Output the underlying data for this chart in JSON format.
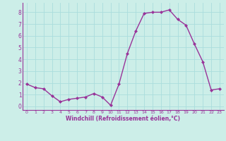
{
  "x": [
    0,
    1,
    2,
    3,
    4,
    5,
    6,
    7,
    8,
    9,
    10,
    11,
    12,
    13,
    14,
    15,
    16,
    17,
    18,
    19,
    20,
    21,
    22,
    23
  ],
  "y": [
    1.9,
    1.6,
    1.5,
    0.9,
    0.4,
    0.6,
    0.7,
    0.8,
    1.1,
    0.8,
    0.1,
    1.9,
    4.5,
    6.4,
    7.9,
    8.0,
    8.0,
    8.2,
    7.4,
    6.9,
    5.3,
    3.8,
    1.4,
    1.5
  ],
  "line_color": "#993399",
  "marker": "D",
  "marker_size": 2.0,
  "bg_color": "#cceee8",
  "grid_color": "#aadddd",
  "xlabel": "Windchill (Refroidissement éolien,°C)",
  "xlabel_color": "#993399",
  "tick_color": "#993399",
  "label_color": "#993399",
  "ylim": [
    -0.3,
    8.8
  ],
  "xlim": [
    -0.5,
    23.5
  ],
  "yticks": [
    0,
    1,
    2,
    3,
    4,
    5,
    6,
    7,
    8
  ],
  "xticks": [
    0,
    1,
    2,
    3,
    4,
    5,
    6,
    7,
    8,
    9,
    10,
    11,
    12,
    13,
    14,
    15,
    16,
    17,
    18,
    19,
    20,
    21,
    22,
    23
  ],
  "figsize": [
    3.2,
    2.0
  ],
  "dpi": 100
}
